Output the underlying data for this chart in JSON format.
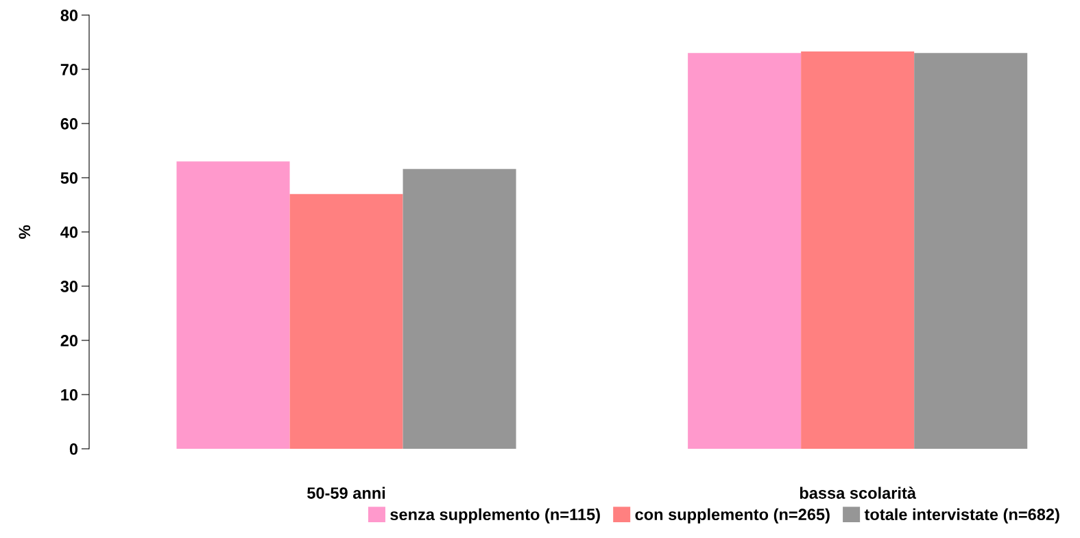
{
  "chart_data": {
    "type": "bar",
    "ylabel": "%",
    "categories": [
      "50-59 anni",
      "bassa scolarità"
    ],
    "series": [
      {
        "name": "senza supplemento (n=115)",
        "color": "#ff99cc",
        "values": [
          53,
          73
        ]
      },
      {
        "name": "con supplemento (n=265)",
        "color": "#ff8080",
        "values": [
          47,
          73.3
        ]
      },
      {
        "name": "totale intervistate (n=682)",
        "color": "#969696",
        "values": [
          51.6,
          73
        ]
      }
    ],
    "ylim": [
      0,
      80
    ],
    "yticks": [
      0,
      10,
      20,
      30,
      40,
      50,
      60,
      70,
      80
    ],
    "grid": false,
    "legend": "bottom"
  }
}
